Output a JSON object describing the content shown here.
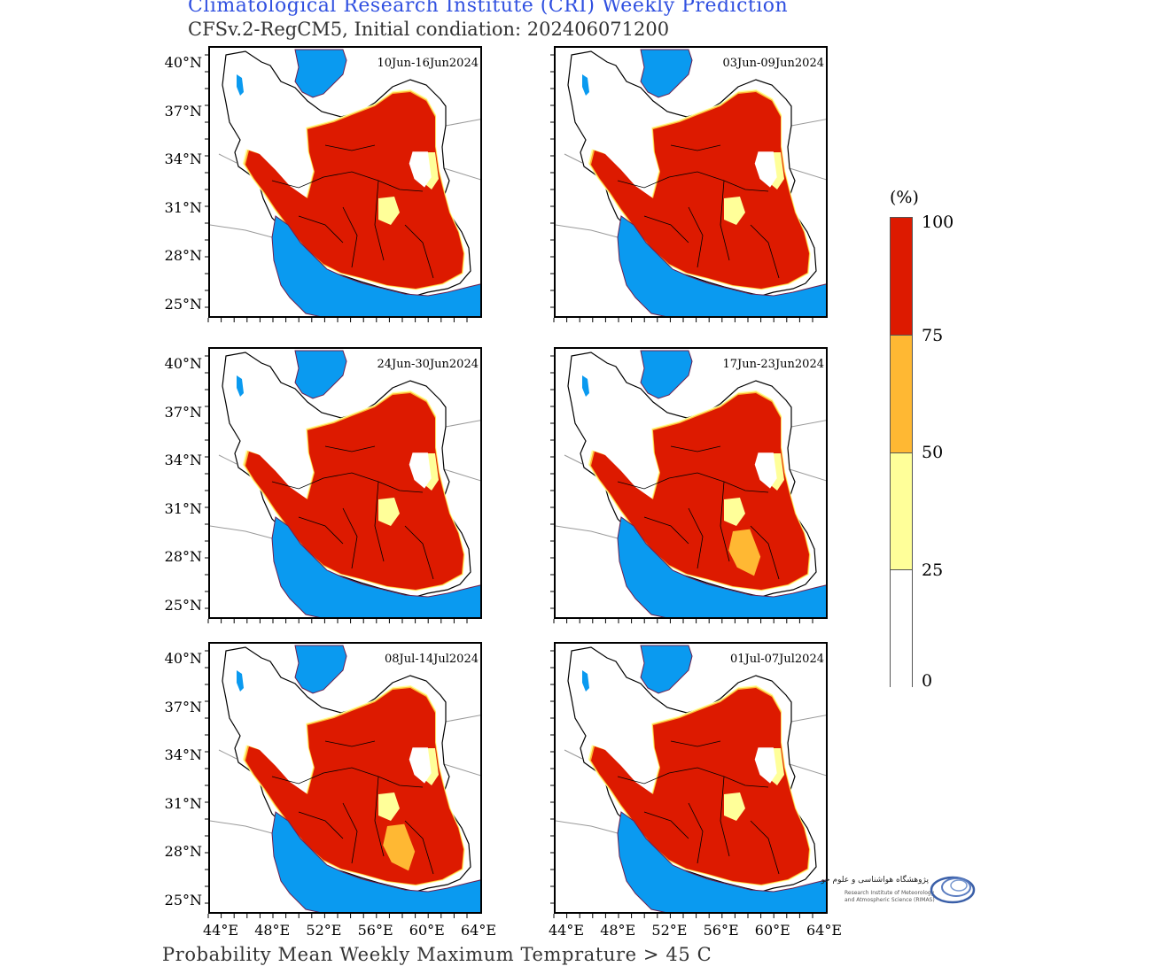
{
  "title": "Climatological Research Institute (CRI) Weekly Prediction",
  "subtitle": "CFSv.2-RegCM5, Initial condiation: 202406071200",
  "footer": "Probability Mean Weekly Maximum Temprature > 45 C",
  "colors": {
    "title": "#3050e0",
    "sea": "#0a9af0",
    "p0_25": "#ffffff",
    "p25_50": "#ffff99",
    "p50_75": "#ffb833",
    "p75_100": "#dd1a00",
    "border": "#000000",
    "neighbor_border": "#9a9a9a"
  },
  "axis": {
    "y_ticks": [
      "40°N",
      "37°N",
      "34°N",
      "31°N",
      "28°N",
      "25°N"
    ],
    "x_ticks": [
      "44°E",
      "48°E",
      "52°E",
      "56°E",
      "60°E",
      "64°E"
    ]
  },
  "panels": [
    {
      "label": "10Jun-16Jun2024"
    },
    {
      "label": "03Jun-09Jun2024"
    },
    {
      "label": "24Jun-30Jun2024"
    },
    {
      "label": "17Jun-23Jun2024"
    },
    {
      "label": "08Jul-14Jul2024"
    },
    {
      "label": "01Jul-07Jul2024"
    }
  ],
  "colorbar": {
    "unit": "(%)",
    "labels": [
      "100",
      "75",
      "50",
      "25",
      "0"
    ]
  },
  "logo": {
    "line1": "پژوهشگاه هواشناسی و علوم جو",
    "line2": "Research Institute of Meteorology",
    "line3": "and Atmospheric Science (RIMAS)"
  }
}
